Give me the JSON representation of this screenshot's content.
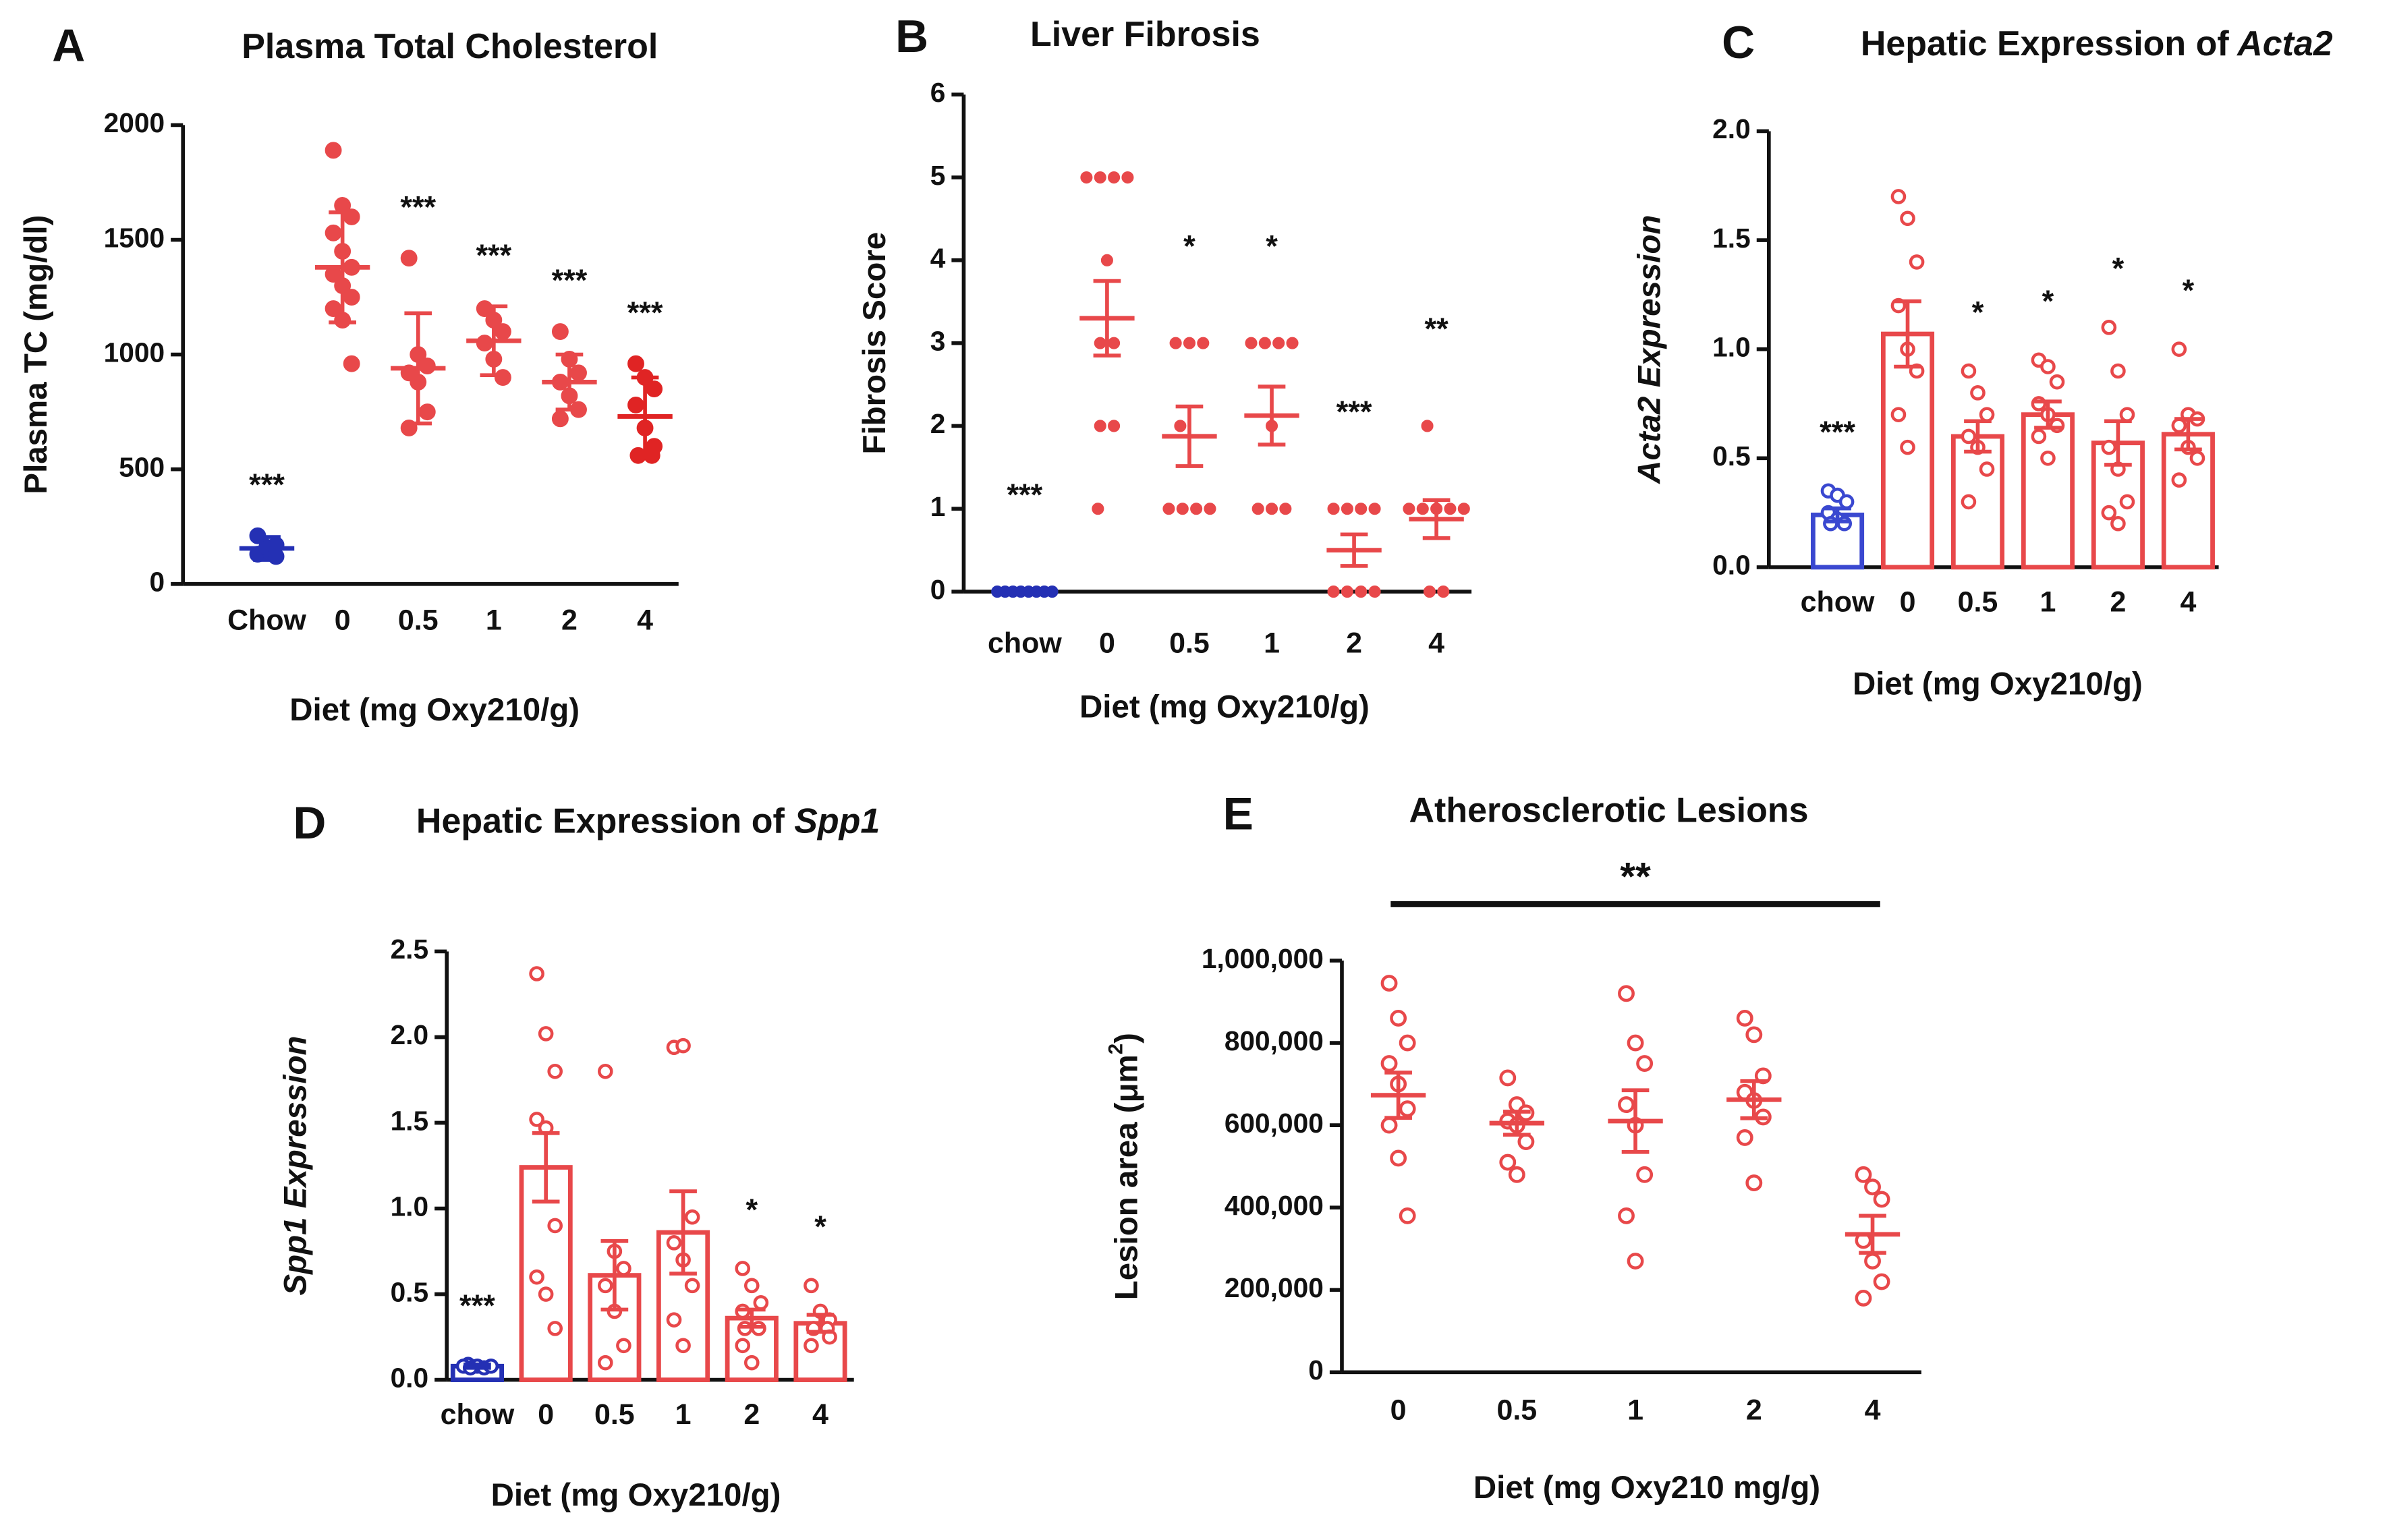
{
  "chart_data": [
    {
      "type": "dotplot",
      "panel": "A",
      "title": "Plasma Total Cholesterol",
      "xlabel": "Diet (mg Oxy210/g)",
      "ylabel": "Plasma TC (mg/dl)",
      "marker": "filled",
      "categories": [
        "Chow",
        "0",
        "0.5",
        "1",
        "2",
        "4"
      ],
      "colors": [
        "#2430b4",
        "#e8484a",
        "#e8484a",
        "#e8484a",
        "#e8484a",
        "#e02424"
      ],
      "values": [
        155,
        1380,
        940,
        1060,
        880,
        730
      ],
      "errors": [
        50,
        240,
        240,
        150,
        120,
        170
      ],
      "points": [
        [
          130,
          150,
          170,
          210,
          160,
          120
        ],
        [
          1890,
          1650,
          1600,
          1530,
          1450,
          1380,
          1350,
          1300,
          1250,
          1200,
          1150,
          960
        ],
        [
          1420,
          1000,
          950,
          920,
          880,
          750,
          680
        ],
        [
          1200,
          1150,
          1100,
          1050,
          980,
          900
        ],
        [
          1100,
          980,
          920,
          880,
          820,
          760,
          720
        ],
        [
          960,
          900,
          850,
          780,
          680,
          600,
          560,
          560
        ]
      ],
      "significance": [
        "***",
        null,
        "***",
        "***",
        "***",
        "***"
      ],
      "ylim": [
        0,
        2000
      ],
      "yticks": [
        0,
        500,
        1000,
        1500,
        2000
      ]
    },
    {
      "type": "dotplot",
      "panel": "B",
      "title": "Liver Fibrosis",
      "xlabel": "Diet (mg Oxy210/g)",
      "ylabel": "Fibrosis Score",
      "marker": "filled",
      "categories": [
        "chow",
        "0",
        "0.5",
        "1",
        "2",
        "4"
      ],
      "colors": [
        "#2430b4",
        "#e8484a",
        "#e8484a",
        "#e8484a",
        "#e8484a",
        "#e8484a"
      ],
      "values": [
        0,
        3.3,
        1.875,
        2.125,
        0.5,
        0.875
      ],
      "errors": [
        0,
        0.45,
        0.36,
        0.35,
        0.19,
        0.23
      ],
      "points": [
        [
          0,
          0,
          0,
          0,
          0,
          0,
          0,
          0
        ],
        [
          5,
          5,
          5,
          5,
          4,
          3,
          3,
          2,
          2,
          1
        ],
        [
          3,
          3,
          3,
          2,
          1,
          1,
          1,
          1
        ],
        [
          3,
          3,
          3,
          3,
          2,
          1,
          1,
          1
        ],
        [
          1,
          1,
          1,
          1,
          0,
          0,
          0,
          0
        ],
        [
          2,
          1,
          1,
          1,
          1,
          1,
          0,
          0
        ]
      ],
      "significance": [
        "***",
        null,
        "*",
        "*",
        "***",
        "**"
      ],
      "ylim": [
        0,
        6
      ],
      "yticks": [
        0,
        1,
        2,
        3,
        4,
        5,
        6
      ]
    },
    {
      "type": "bar",
      "panel": "C",
      "title": [
        "Hepatic Expression of",
        "Acta2"
      ],
      "xlabel": "Diet (mg Oxy210/g)",
      "ylabel": "Acta2 Expression",
      "ylabel_style": "italic",
      "marker": "open",
      "categories": [
        "chow",
        "0",
        "0.5",
        "1",
        "2",
        "4"
      ],
      "colors": [
        "#3a48d0",
        "#e8484a",
        "#e8484a",
        "#e8484a",
        "#e8484a",
        "#e8484a"
      ],
      "values": [
        0.24,
        1.07,
        0.6,
        0.7,
        0.57,
        0.61
      ],
      "errors": [
        0.03,
        0.15,
        0.07,
        0.06,
        0.1,
        0.07
      ],
      "points": [
        [
          0.35,
          0.33,
          0.3,
          0.25,
          0.22,
          0.2,
          0.2
        ],
        [
          1.7,
          1.6,
          1.4,
          1.2,
          1.0,
          0.9,
          0.7,
          0.55
        ],
        [
          0.9,
          0.8,
          0.7,
          0.6,
          0.55,
          0.45,
          0.3
        ],
        [
          0.95,
          0.92,
          0.85,
          0.75,
          0.7,
          0.65,
          0.6,
          0.5
        ],
        [
          1.1,
          0.9,
          0.7,
          0.55,
          0.45,
          0.3,
          0.25,
          0.2
        ],
        [
          1.0,
          0.7,
          0.68,
          0.65,
          0.55,
          0.5,
          0.4
        ]
      ],
      "significance": [
        "***",
        null,
        "*",
        "*",
        "*",
        "*"
      ],
      "ylim": [
        0,
        2
      ],
      "yticks": [
        {
          "value": 0,
          "label": "0.0"
        },
        0.5,
        {
          "value": 1,
          "label": "1.0"
        },
        1.5,
        {
          "value": 2,
          "label": "2.0"
        }
      ]
    },
    {
      "type": "bar",
      "panel": "D",
      "title": [
        "Hepatic Expression of",
        "Spp1"
      ],
      "xlabel": "Diet (mg Oxy210/g)",
      "ylabel": "Spp1 Expression",
      "ylabel_style": "italic",
      "marker": "open",
      "categories": [
        "chow",
        "0",
        "0.5",
        "1",
        "2",
        "4"
      ],
      "colors": [
        "#2430b4",
        "#e8484a",
        "#e8484a",
        "#e8484a",
        "#e8484a",
        "#e8484a"
      ],
      "values": [
        0.08,
        1.24,
        0.61,
        0.86,
        0.36,
        0.33
      ],
      "errors": [
        0.01,
        0.2,
        0.2,
        0.24,
        0.05,
        0.05
      ],
      "points": [
        [
          0.09,
          0.08,
          0.08,
          0.07,
          0.07,
          0.08
        ],
        [
          2.37,
          2.02,
          1.8,
          1.52,
          1.47,
          0.9,
          0.6,
          0.5,
          0.3
        ],
        [
          1.8,
          0.75,
          0.65,
          0.55,
          0.4,
          0.2,
          0.1
        ],
        [
          1.94,
          1.95,
          0.95,
          0.8,
          0.7,
          0.55,
          0.35,
          0.2
        ],
        [
          0.65,
          0.55,
          0.45,
          0.4,
          0.3,
          0.3,
          0.2,
          0.1
        ],
        [
          0.55,
          0.4,
          0.35,
          0.3,
          0.3,
          0.25,
          0.2
        ]
      ],
      "significance": [
        "***",
        null,
        null,
        null,
        "*",
        "*"
      ],
      "ylim": [
        0,
        2.5
      ],
      "yticks": [
        {
          "value": 0,
          "label": "0.0"
        },
        0.5,
        {
          "value": 1,
          "label": "1.0"
        },
        1.5,
        {
          "value": 2,
          "label": "2.0"
        },
        2.5
      ]
    },
    {
      "type": "dotplot",
      "panel": "E",
      "title": "Atherosclerotic Lesions",
      "xlabel": "Diet (mg Oxy210 mg/g)",
      "ylabel": [
        "Lesion area (μm",
        "2",
        ")"
      ],
      "marker": "open",
      "categories": [
        "0",
        "0.5",
        "1",
        "2",
        "4"
      ],
      "colors": [
        "#e8484a",
        "#e8484a",
        "#e8484a",
        "#e8484a",
        "#e8484a"
      ],
      "values": [
        673000,
        605000,
        610000,
        662000,
        335000
      ],
      "errors": [
        55000,
        28000,
        75000,
        45000,
        45000
      ],
      "points": [
        [
          945000,
          860000,
          800000,
          750000,
          700000,
          640000,
          600000,
          520000,
          380000
        ],
        [
          715000,
          650000,
          630000,
          610000,
          600000,
          560000,
          510000,
          480000
        ],
        [
          920000,
          800000,
          750000,
          650000,
          600000,
          480000,
          380000,
          270000
        ],
        [
          860000,
          820000,
          720000,
          680000,
          660000,
          620000,
          570000,
          460000
        ],
        [
          480000,
          450000,
          420000,
          320000,
          270000,
          220000,
          180000
        ]
      ],
      "bracket_label": "**",
      "ylim": [
        0,
        1000000
      ],
      "yticks": [
        0,
        {
          "value": 200000,
          "label": "200,000"
        },
        {
          "value": 400000,
          "label": "400,000"
        },
        {
          "value": 600000,
          "label": "600,000"
        },
        {
          "value": 800000,
          "label": "800,000"
        },
        {
          "value": 1000000,
          "label": "1,000,000"
        }
      ]
    }
  ]
}
